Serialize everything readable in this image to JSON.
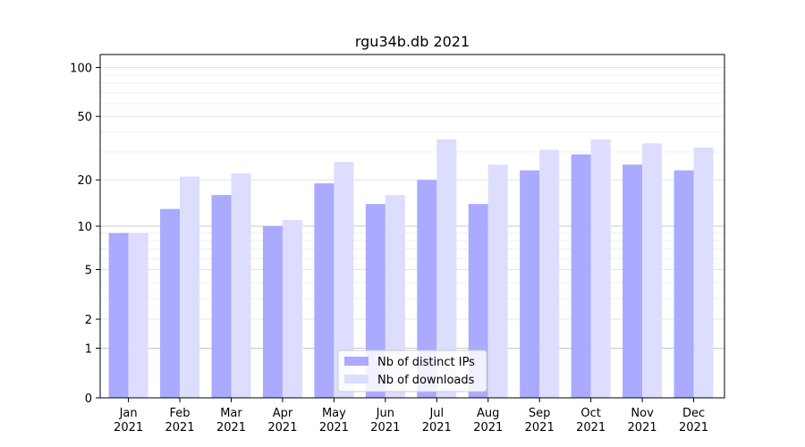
{
  "chart_data": {
    "type": "bar",
    "title": "rgu34b.db 2021",
    "xlabel": "",
    "ylabel": "",
    "yscale": "log(1+y)",
    "ylim": [
      0,
      120
    ],
    "yticks": [
      0,
      1,
      2,
      5,
      10,
      20,
      50,
      100
    ],
    "grid": true,
    "legend_position": "bottom-center",
    "categories": [
      "Jan\n2021",
      "Feb\n2021",
      "Mar\n2021",
      "Apr\n2021",
      "May\n2021",
      "Jun\n2021",
      "Jul\n2021",
      "Aug\n2021",
      "Sep\n2021",
      "Oct\n2021",
      "Nov\n2021",
      "Dec\n2021"
    ],
    "series": [
      {
        "name": "Nb of distinct IPs",
        "color": "#aaaaff",
        "values": [
          9,
          13,
          16,
          10,
          19,
          14,
          20,
          14,
          23,
          29,
          25,
          23
        ]
      },
      {
        "name": "Nb of downloads",
        "color": "#ddddff",
        "values": [
          9,
          21,
          22,
          11,
          26,
          16,
          36,
          25,
          31,
          36,
          34,
          32
        ]
      }
    ]
  }
}
